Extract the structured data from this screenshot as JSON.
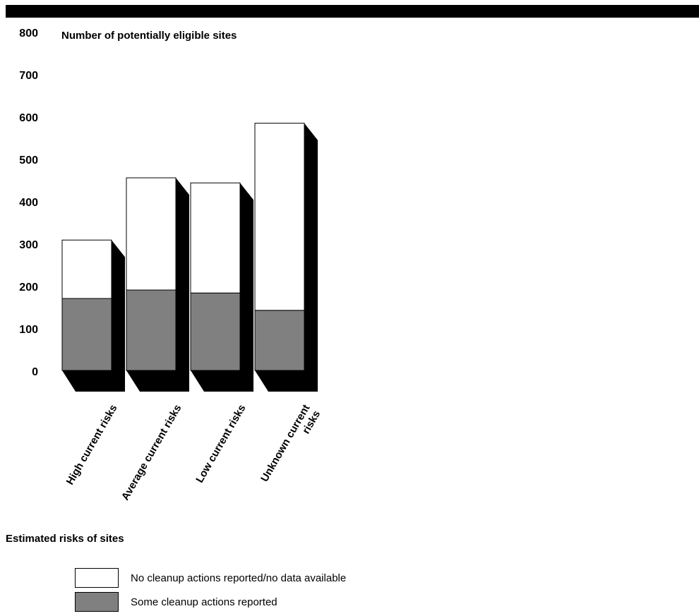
{
  "chart_data": {
    "type": "bar",
    "stacked": true,
    "ylabel": "Number of potentially eligible sites",
    "xlabel": "Estimated risks of sites",
    "ylim": [
      0,
      800
    ],
    "yticks": [
      0,
      100,
      200,
      300,
      400,
      500,
      600,
      700,
      800
    ],
    "categories": [
      "High current risks",
      "Average current risks",
      "Low current risks",
      "Unknown current risks"
    ],
    "category_lines": [
      [
        "High current risks"
      ],
      [
        "Average current risks"
      ],
      [
        "Low current risks"
      ],
      [
        "Unknown current",
        "risks"
      ]
    ],
    "series": [
      {
        "name": "Some cleanup actions reported",
        "values": [
          170,
          190,
          183,
          142
        ],
        "color": "#808080"
      },
      {
        "name": "No cleanup actions reported/no data available",
        "values": [
          138,
          265,
          260,
          442
        ],
        "color": "#ffffff"
      }
    ],
    "grid": false,
    "legend_position": "bottom-left"
  },
  "legend": [
    {
      "label": "No cleanup actions reported/no data available",
      "color": "#ffffff"
    },
    {
      "label": "Some cleanup actions reported",
      "color": "#808080"
    }
  ]
}
